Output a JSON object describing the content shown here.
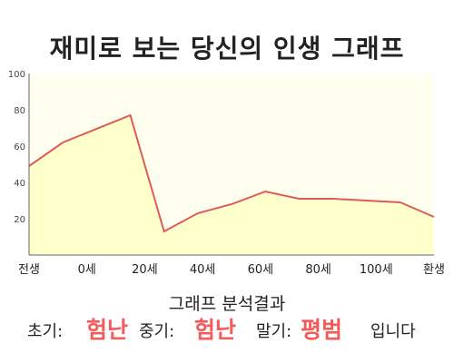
{
  "chart_data": {
    "type": "area",
    "title": "재미로 보는 당신의 인생 그래프",
    "x_labels": [
      "전생",
      "0세",
      "20세",
      "40세",
      "60세",
      "80세",
      "100세",
      "환생"
    ],
    "x": [
      -10,
      0,
      20,
      30,
      40,
      50,
      60,
      70,
      80,
      90,
      100,
      110
    ],
    "values": [
      49,
      62,
      77,
      13,
      23,
      28,
      35,
      31,
      31,
      30,
      29,
      21
    ],
    "yticks": [
      20,
      40,
      60,
      80,
      100
    ],
    "ylim": [
      0,
      100
    ],
    "grid": true,
    "colors": {
      "line": "#e05a5a",
      "fill": "#ffffcc",
      "background": "#fffff0",
      "grid": "#ffffff"
    }
  },
  "analysis": {
    "title": "그래프 분석결과",
    "early_label": "초기:",
    "early_value": "험난",
    "mid_label": "중기:",
    "mid_value": "험난",
    "late_label": "말기:",
    "late_value": "평범",
    "suffix": "입니다"
  }
}
